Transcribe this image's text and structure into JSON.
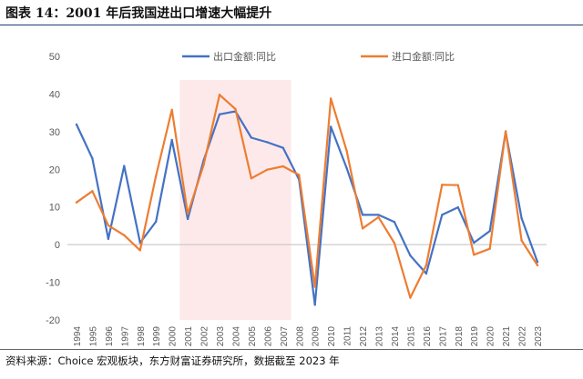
{
  "figure_title": "图表 14：2001 年后我国进出口增速大幅提升",
  "source_note": "资料来源：Choice 宏观板块，东方财富证券研究所，数据截至 2023 年",
  "colors": {
    "export": "#4472c4",
    "import": "#ed7d31",
    "highlight": "#fde9ea",
    "axis": "#bfbfbf",
    "tick_text": "#595959"
  },
  "chart_data": {
    "type": "line",
    "x": [
      "1994",
      "1995",
      "1996",
      "1997",
      "1998",
      "1999",
      "2000",
      "2001",
      "2002",
      "2003",
      "2004",
      "2005",
      "2006",
      "2007",
      "2008",
      "2009",
      "2010",
      "2011",
      "2012",
      "2013",
      "2014",
      "2015",
      "2016",
      "2017",
      "2018",
      "2019",
      "2020",
      "2021",
      "2022",
      "2023"
    ],
    "ylim": [
      -20,
      50
    ],
    "yticks": [
      -20,
      -10,
      0,
      10,
      20,
      30,
      40,
      50
    ],
    "grid": false,
    "legend_position": "top",
    "highlight_range": [
      "2001",
      "2007"
    ],
    "series": [
      {
        "name": "出口金额:同比",
        "color": "#4472c4",
        "values": [
          31.9,
          22.9,
          1.5,
          20.9,
          0.5,
          6.1,
          27.8,
          6.8,
          22.4,
          34.6,
          35.4,
          28.4,
          27.2,
          25.7,
          17.3,
          -16.0,
          31.3,
          20.3,
          7.9,
          7.9,
          6.0,
          -2.9,
          -7.7,
          7.9,
          9.9,
          0.5,
          3.6,
          29.9,
          7.0,
          -4.6
        ]
      },
      {
        "name": "进口金额:同比",
        "color": "#ed7d31",
        "values": [
          11.2,
          14.2,
          5.1,
          2.5,
          -1.5,
          18.2,
          35.8,
          8.2,
          21.2,
          39.8,
          36.0,
          17.6,
          19.9,
          20.8,
          18.5,
          -11.2,
          38.8,
          24.9,
          4.3,
          7.3,
          0.4,
          -14.1,
          -5.5,
          15.9,
          15.8,
          -2.7,
          -1.1,
          30.1,
          1.1,
          -5.5
        ]
      }
    ]
  }
}
